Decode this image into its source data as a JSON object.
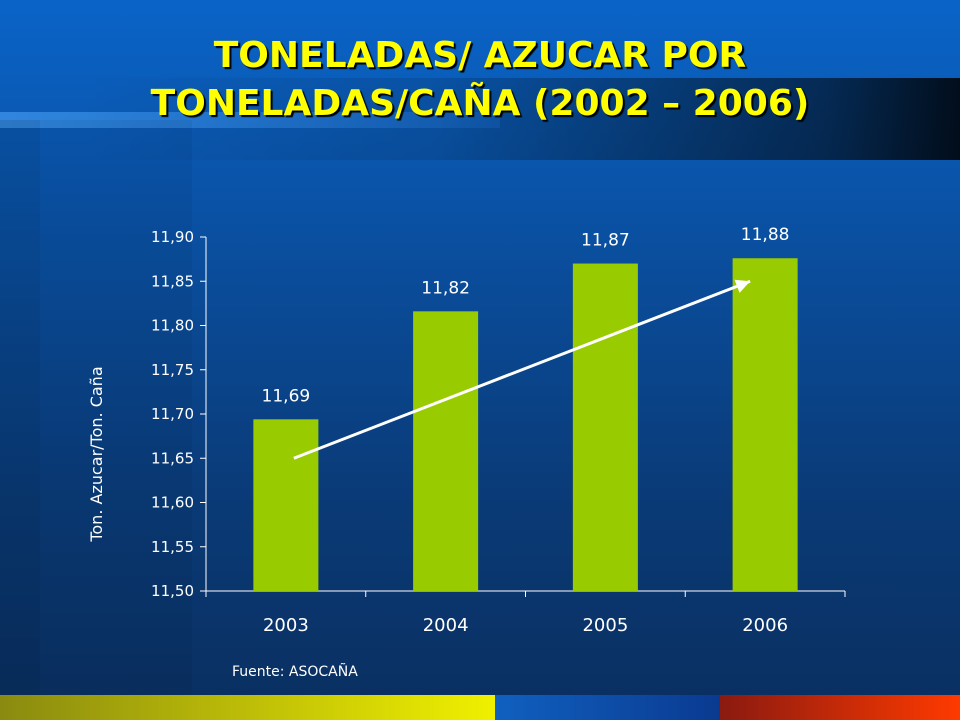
{
  "slide": {
    "title_line1": "TONELADAS/ AZUCAR POR",
    "title_line2": "TONELADAS/CAÑA (2002 – 2006)",
    "source": "Fuente: ASOCAÑA"
  },
  "colors": {
    "bar": "#99cc00",
    "title": "#ffff00",
    "text": "#ffffff",
    "trend_arrow": "#ffffff"
  },
  "chart_data": {
    "type": "bar",
    "categories": [
      "2003",
      "2004",
      "2005",
      "2006"
    ],
    "values": [
      11.694,
      11.816,
      11.87,
      11.876
    ],
    "value_labels": [
      "11,69",
      "11,82",
      "11,87",
      "11,88"
    ],
    "ylabel": "Ton. Azucar/Ton. Caña",
    "ylim": [
      11.5,
      11.9
    ],
    "yticks": [
      11.5,
      11.55,
      11.6,
      11.65,
      11.7,
      11.75,
      11.8,
      11.85,
      11.9
    ],
    "ytick_labels": [
      "11,50",
      "11,55",
      "11,60",
      "11,65",
      "11,70",
      "11,75",
      "11,80",
      "11,85",
      "11,90"
    ],
    "grid": false,
    "legend": "none",
    "annotations": [
      {
        "type": "arrow",
        "from": {
          "x": "2003",
          "y": 11.65
        },
        "to": {
          "x": "2006",
          "y": 11.85
        }
      }
    ]
  }
}
